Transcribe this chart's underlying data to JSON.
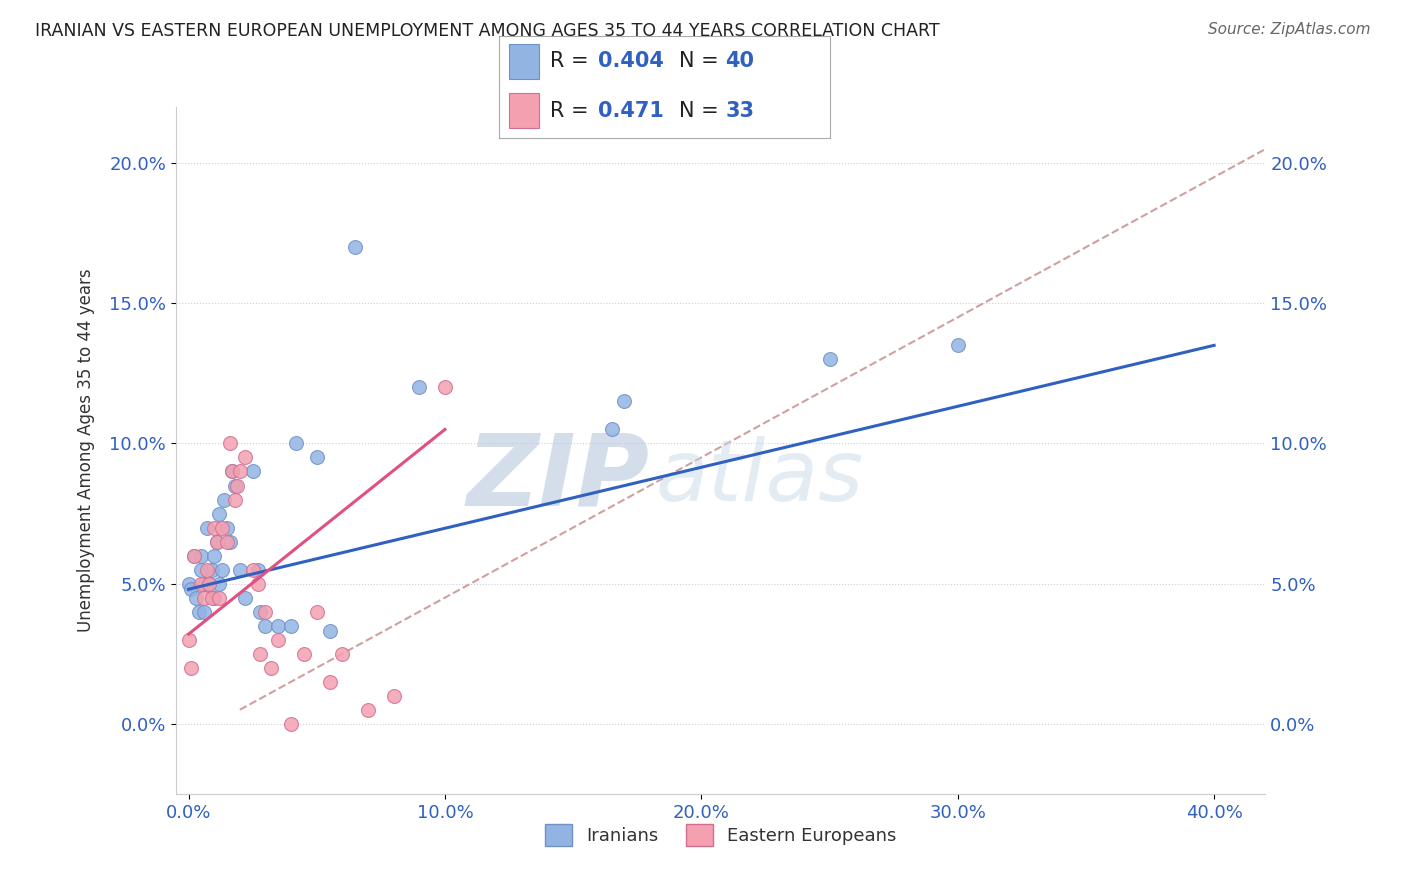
{
  "title": "IRANIAN VS EASTERN EUROPEAN UNEMPLOYMENT AMONG AGES 35 TO 44 YEARS CORRELATION CHART",
  "source": "Source: ZipAtlas.com",
  "ylabel": "Unemployment Among Ages 35 to 44 years",
  "xlabel_ticks": [
    "0.0%",
    "10.0%",
    "20.0%",
    "30.0%",
    "40.0%"
  ],
  "xlabel_vals": [
    0.0,
    10.0,
    20.0,
    30.0,
    40.0
  ],
  "ylabel_ticks": [
    "0.0%",
    "5.0%",
    "10.0%",
    "15.0%",
    "20.0%"
  ],
  "ylabel_vals": [
    0.0,
    5.0,
    10.0,
    15.0,
    20.0
  ],
  "xlim": [
    -0.5,
    42.0
  ],
  "ylim": [
    -2.5,
    22.0
  ],
  "iranians_R": 0.404,
  "iranians_N": 40,
  "eastern_R": 0.471,
  "eastern_N": 33,
  "iranian_color": "#92B4E3",
  "eastern_color": "#F4A0B0",
  "iranian_line_color": "#3060C0",
  "eastern_line_color": "#E05080",
  "diagonal_color": "#D0A0A0",
  "background_color": "#FFFFFF",
  "legend_iranians": "Iranians",
  "legend_eastern": "Eastern Europeans",
  "iranians_x": [
    0.0,
    0.1,
    0.2,
    0.3,
    0.4,
    0.5,
    0.5,
    0.6,
    0.6,
    0.7,
    0.8,
    0.9,
    1.0,
    1.0,
    1.1,
    1.2,
    1.2,
    1.3,
    1.4,
    1.5,
    1.6,
    1.7,
    1.8,
    2.0,
    2.2,
    2.5,
    2.7,
    2.8,
    3.0,
    3.5,
    4.0,
    4.2,
    5.0,
    5.5,
    6.5,
    9.0,
    17.0,
    25.0,
    16.5,
    30.0
  ],
  "iranians_y": [
    5.0,
    4.8,
    6.0,
    4.5,
    4.0,
    6.0,
    5.5,
    5.0,
    4.0,
    7.0,
    5.0,
    5.5,
    4.5,
    6.0,
    6.5,
    5.0,
    7.5,
    5.5,
    8.0,
    7.0,
    6.5,
    9.0,
    8.5,
    5.5,
    4.5,
    9.0,
    5.5,
    4.0,
    3.5,
    3.5,
    3.5,
    10.0,
    9.5,
    3.3,
    17.0,
    12.0,
    11.5,
    13.0,
    10.5,
    13.5
  ],
  "eastern_x": [
    0.0,
    0.1,
    0.2,
    0.5,
    0.6,
    0.7,
    0.8,
    0.9,
    1.0,
    1.1,
    1.2,
    1.3,
    1.5,
    1.6,
    1.7,
    1.8,
    1.9,
    2.0,
    2.2,
    2.5,
    2.7,
    2.8,
    3.0,
    3.2,
    3.5,
    4.0,
    4.5,
    5.0,
    5.5,
    6.0,
    7.0,
    8.0,
    10.0
  ],
  "eastern_y": [
    3.0,
    2.0,
    6.0,
    5.0,
    4.5,
    5.5,
    5.0,
    4.5,
    7.0,
    6.5,
    4.5,
    7.0,
    6.5,
    10.0,
    9.0,
    8.0,
    8.5,
    9.0,
    9.5,
    5.5,
    5.0,
    2.5,
    4.0,
    2.0,
    3.0,
    0.0,
    2.5,
    4.0,
    1.5,
    2.5,
    0.5,
    1.0,
    12.0
  ],
  "iranian_line_x0": 0.0,
  "iranian_line_x1": 40.0,
  "iranian_line_y0": 4.8,
  "iranian_line_y1": 13.5,
  "eastern_line_x0": 0.0,
  "eastern_line_x1": 10.0,
  "eastern_line_y0": 3.2,
  "eastern_line_y1": 10.5,
  "diagonal_x0": 2.0,
  "diagonal_x1": 42.0,
  "diagonal_y0": 0.5,
  "diagonal_y1": 20.5
}
